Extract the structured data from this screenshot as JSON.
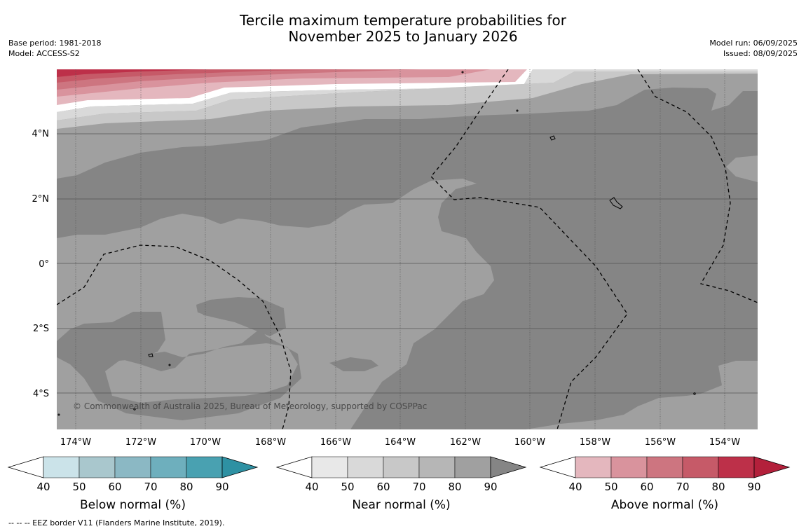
{
  "header": {
    "title_line1": "Tercile maximum temperature probabilities for",
    "title_line2": "November 2025 to January 2026",
    "base_period": "Base period: 1981-2018",
    "model": "Model: ACCESS-S2",
    "model_run": "Model run: 06/09/2025",
    "issued": "Issued: 08/09/2025"
  },
  "map": {
    "lat_labels": [
      "4°N",
      "2°N",
      "0°",
      "2°S",
      "4°S"
    ],
    "lon_labels": [
      "174°W",
      "172°W",
      "170°W",
      "168°W",
      "166°W",
      "164°W",
      "162°W",
      "160°W",
      "158°W",
      "156°W",
      "154°W"
    ],
    "copyright": "© Commonwealth of Australia 2025, Bureau of Meteorology, supported by COSPPac",
    "ocean_color": "#a0a0a0",
    "dark_color": "#858585"
  },
  "colorbars": [
    {
      "label": "Below normal (%)",
      "ticks": [
        "40",
        "50",
        "60",
        "70",
        "80",
        "90"
      ],
      "colors": [
        "#ffffff",
        "#cbe3e9",
        "#a9c7cd",
        "#8bb8c4",
        "#6eafbd",
        "#49a1b1",
        "#2e91a3"
      ]
    },
    {
      "label": "Near normal (%)",
      "ticks": [
        "40",
        "50",
        "60",
        "70",
        "80",
        "90"
      ],
      "colors": [
        "#ffffff",
        "#e8e8e8",
        "#d9d9d9",
        "#c8c8c8",
        "#b6b6b6",
        "#a0a0a0",
        "#858585"
      ]
    },
    {
      "label": "Above normal (%)",
      "ticks": [
        "40",
        "50",
        "60",
        "70",
        "80",
        "90"
      ],
      "colors": [
        "#ffffff",
        "#e4b7be",
        "#d9939d",
        "#cd7580",
        "#c65a68",
        "#bd3049",
        "#b3203b"
      ]
    }
  ],
  "footnote": "--  --  -- EEZ border V11 (Flanders Marine Institute, 2019)."
}
